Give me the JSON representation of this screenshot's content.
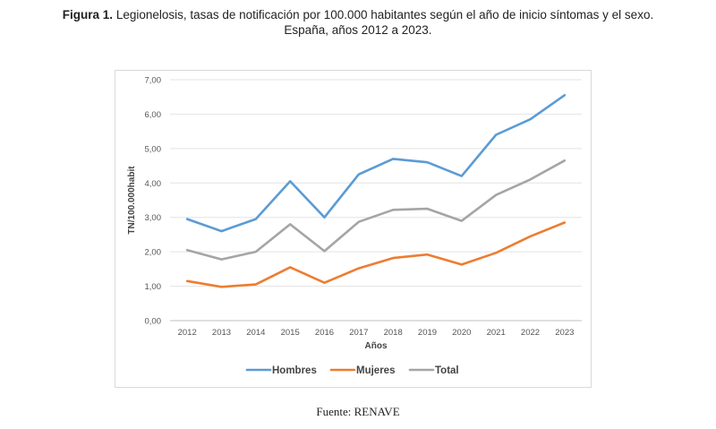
{
  "caption": {
    "label": "Figura 1.",
    "text_line1": "Legionelosis, tasas de notificación por 100.000 habitantes según el año de inicio síntomas y el sexo.",
    "text_line2": "España, años 2012 a 2023."
  },
  "source": "Fuente: RENAVE",
  "chart_data": {
    "type": "line",
    "title": "",
    "xlabel": "Años",
    "ylabel": "TN/100.000habit",
    "categories": [
      "2012",
      "2013",
      "2014",
      "2015",
      "2016",
      "2017",
      "2018",
      "2019",
      "2020",
      "2021",
      "2022",
      "2023"
    ],
    "ylim": [
      0,
      7
    ],
    "yticks": [
      "0,00",
      "1,00",
      "2,00",
      "3,00",
      "4,00",
      "5,00",
      "6,00",
      "7,00"
    ],
    "grid": true,
    "legend_position": "bottom",
    "series": [
      {
        "name": "Hombres",
        "color": "#5b9bd5",
        "values": [
          2.95,
          2.6,
          2.95,
          4.05,
          3.0,
          4.25,
          4.7,
          4.6,
          4.2,
          5.4,
          5.85,
          6.55
        ]
      },
      {
        "name": "Mujeres",
        "color": "#ed7d31",
        "values": [
          1.15,
          0.98,
          1.05,
          1.55,
          1.1,
          1.52,
          1.82,
          1.92,
          1.63,
          1.97,
          2.45,
          2.85
        ]
      },
      {
        "name": "Total",
        "color": "#a5a5a5",
        "values": [
          2.05,
          1.78,
          2.0,
          2.8,
          2.02,
          2.87,
          3.22,
          3.25,
          2.9,
          3.65,
          4.1,
          4.65
        ]
      }
    ]
  }
}
